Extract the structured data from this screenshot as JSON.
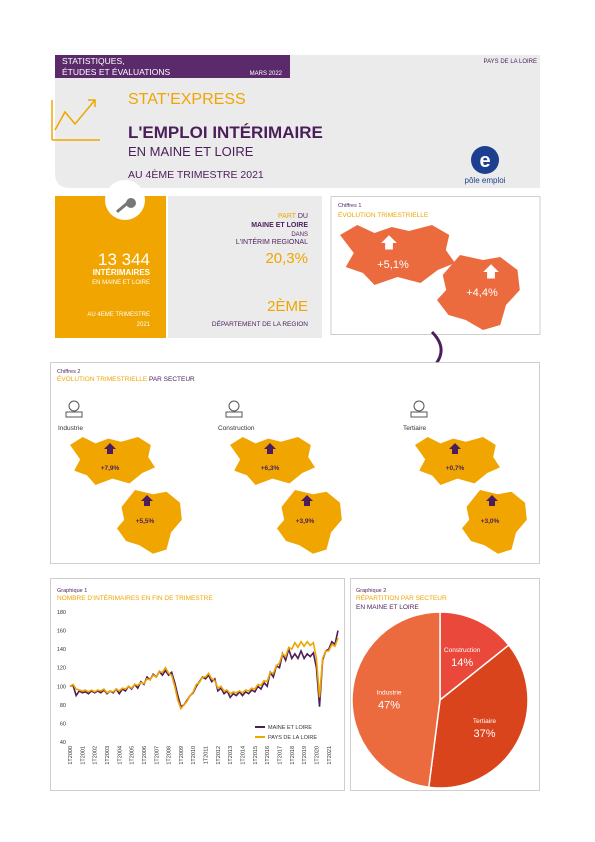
{
  "header": {
    "band": [
      "STATISTIQUES,",
      "ÉTUDES ET ÉVALUATIONS"
    ],
    "date": "MARS 2022",
    "region": "PAYS DE LA LOIRE",
    "brand": "STAT’EXPRESS",
    "title": "L'EMPLOI INTÉRIMAIRE",
    "subtitle": "EN MAINE ET LOIRE",
    "period": "AU 4ÈME TRIMESTRE 2021",
    "logo": "pôle emploi"
  },
  "kpi": {
    "count": "13 344",
    "count_label": "INTÉRIMAIRES",
    "count_sub": "EN MAINE ET LOIRE",
    "period": [
      "AU 4EME TRIMESTRE",
      "2021"
    ],
    "share": [
      "PART",
      "DU",
      "MAINE ET LOIRE",
      "DANS",
      "L'INTÉRIM REGIONAL"
    ],
    "share_value": "20,3%",
    "rank": "2ÈME",
    "rank_label": "DÉPARTEMENT DE LA REGION"
  },
  "chiffres1": {
    "caption": "Chiffres 1",
    "title": "ÉVOLUTION TRIMESTRIELLE",
    "department": "+5,1%",
    "region": "+4,4%"
  },
  "chiffres2": {
    "caption": "Chiffres 2",
    "title": [
      "ÉVOLUTION TRIMESTRIELLE",
      " PAR SECTEUR"
    ],
    "sectors": [
      {
        "name": "Industrie",
        "department": "+7,9%",
        "region": "+5,5%"
      },
      {
        "name": "Construction",
        "department": "+6,3%",
        "region": "+3,9%"
      },
      {
        "name": "Tertiaire",
        "department": "+0,7%",
        "region": "+3,0%"
      }
    ]
  },
  "chart_data": [
    {
      "type": "line",
      "caption": "Graphique 1",
      "title": "NOMBRE D'INTÉRIMAIRES EN FIN DE TRIMESTRE",
      "categories": [
        "1T2000",
        null,
        null,
        null,
        "1T2001",
        null,
        null,
        null,
        "1T2002",
        null,
        null,
        null,
        "1T2003",
        null,
        null,
        null,
        "1T2004",
        null,
        null,
        null,
        "1T2005",
        null,
        null,
        null,
        "1T2006",
        null,
        null,
        null,
        "1T2007",
        null,
        null,
        null,
        "1T2008",
        null,
        null,
        null,
        "1T2009",
        null,
        null,
        null,
        "1T2010",
        null,
        null,
        null,
        "1T2011",
        null,
        null,
        null,
        "1T2012",
        null,
        null,
        null,
        "1T2013",
        null,
        null,
        null,
        "1T2014",
        null,
        null,
        null,
        "1T2015",
        null,
        null,
        null,
        "1T2016",
        null,
        null,
        null,
        "1T2017",
        null,
        null,
        null,
        "1T2018",
        null,
        null,
        null,
        "1T2019",
        null,
        null,
        null,
        "1T2020",
        null,
        null,
        null,
        "1T2021",
        null,
        null,
        null
      ],
      "series": [
        {
          "name": "MAINE ET LOIRE",
          "color": "#4b1e5a",
          "values": [
            100,
            101,
            90,
            95,
            93,
            94,
            92,
            95,
            93,
            95,
            93,
            96,
            92,
            95,
            93,
            97,
            92,
            97,
            95,
            100,
            97,
            102,
            98,
            105,
            102,
            110,
            107,
            113,
            110,
            116,
            112,
            117,
            112,
            115,
            104,
            90,
            78,
            80,
            85,
            90,
            93,
            100,
            105,
            110,
            108,
            112,
            105,
            108,
            95,
            98,
            92,
            95,
            88,
            92,
            90,
            94,
            90,
            94,
            92,
            96,
            94,
            100,
            97,
            104,
            100,
            115,
            110,
            122,
            120,
            135,
            128,
            140,
            130,
            135,
            130,
            138,
            130,
            135,
            132,
            136,
            120,
            78,
            128,
            138,
            140,
            148,
            145,
            160
          ]
        },
        {
          "name": "PAYS DE LA LOIRE",
          "color": "#f0a500",
          "values": [
            100,
            102,
            97,
            96,
            95,
            96,
            94,
            96,
            94,
            96,
            95,
            97,
            93,
            95,
            94,
            97,
            95,
            98,
            97,
            100,
            98,
            102,
            101,
            104,
            103,
            108,
            107,
            112,
            110,
            116,
            115,
            120,
            114,
            112,
            100,
            85,
            76,
            80,
            84,
            90,
            94,
            102,
            104,
            110,
            110,
            114,
            108,
            106,
            98,
            100,
            95,
            96,
            92,
            94,
            93,
            95,
            93,
            96,
            95,
            98,
            97,
            102,
            101,
            106,
            105,
            115,
            114,
            122,
            125,
            135,
            132,
            142,
            140,
            147,
            142,
            148,
            143,
            148,
            144,
            147,
            130,
            88,
            130,
            138,
            138,
            145,
            143,
            152
          ]
        }
      ],
      "ylim": [
        40,
        180
      ],
      "yticks": [
        40,
        60,
        80,
        100,
        120,
        140,
        160,
        180
      ],
      "grid": false,
      "legend": "bottom-right"
    },
    {
      "type": "pie",
      "caption": "Graphique 2",
      "title": "RÉPARTITION PAR SECTEUR",
      "subtitle": "EN MAINE ET LOIRE",
      "categories": [
        "Construction",
        "Tertiaire",
        "Industrie"
      ],
      "values": [
        14,
        37,
        47
      ],
      "value_labels": [
        "14%",
        "37%",
        "47%"
      ],
      "colors": [
        "#e9483b",
        "#d9441c",
        "#ec6b3e"
      ]
    }
  ]
}
